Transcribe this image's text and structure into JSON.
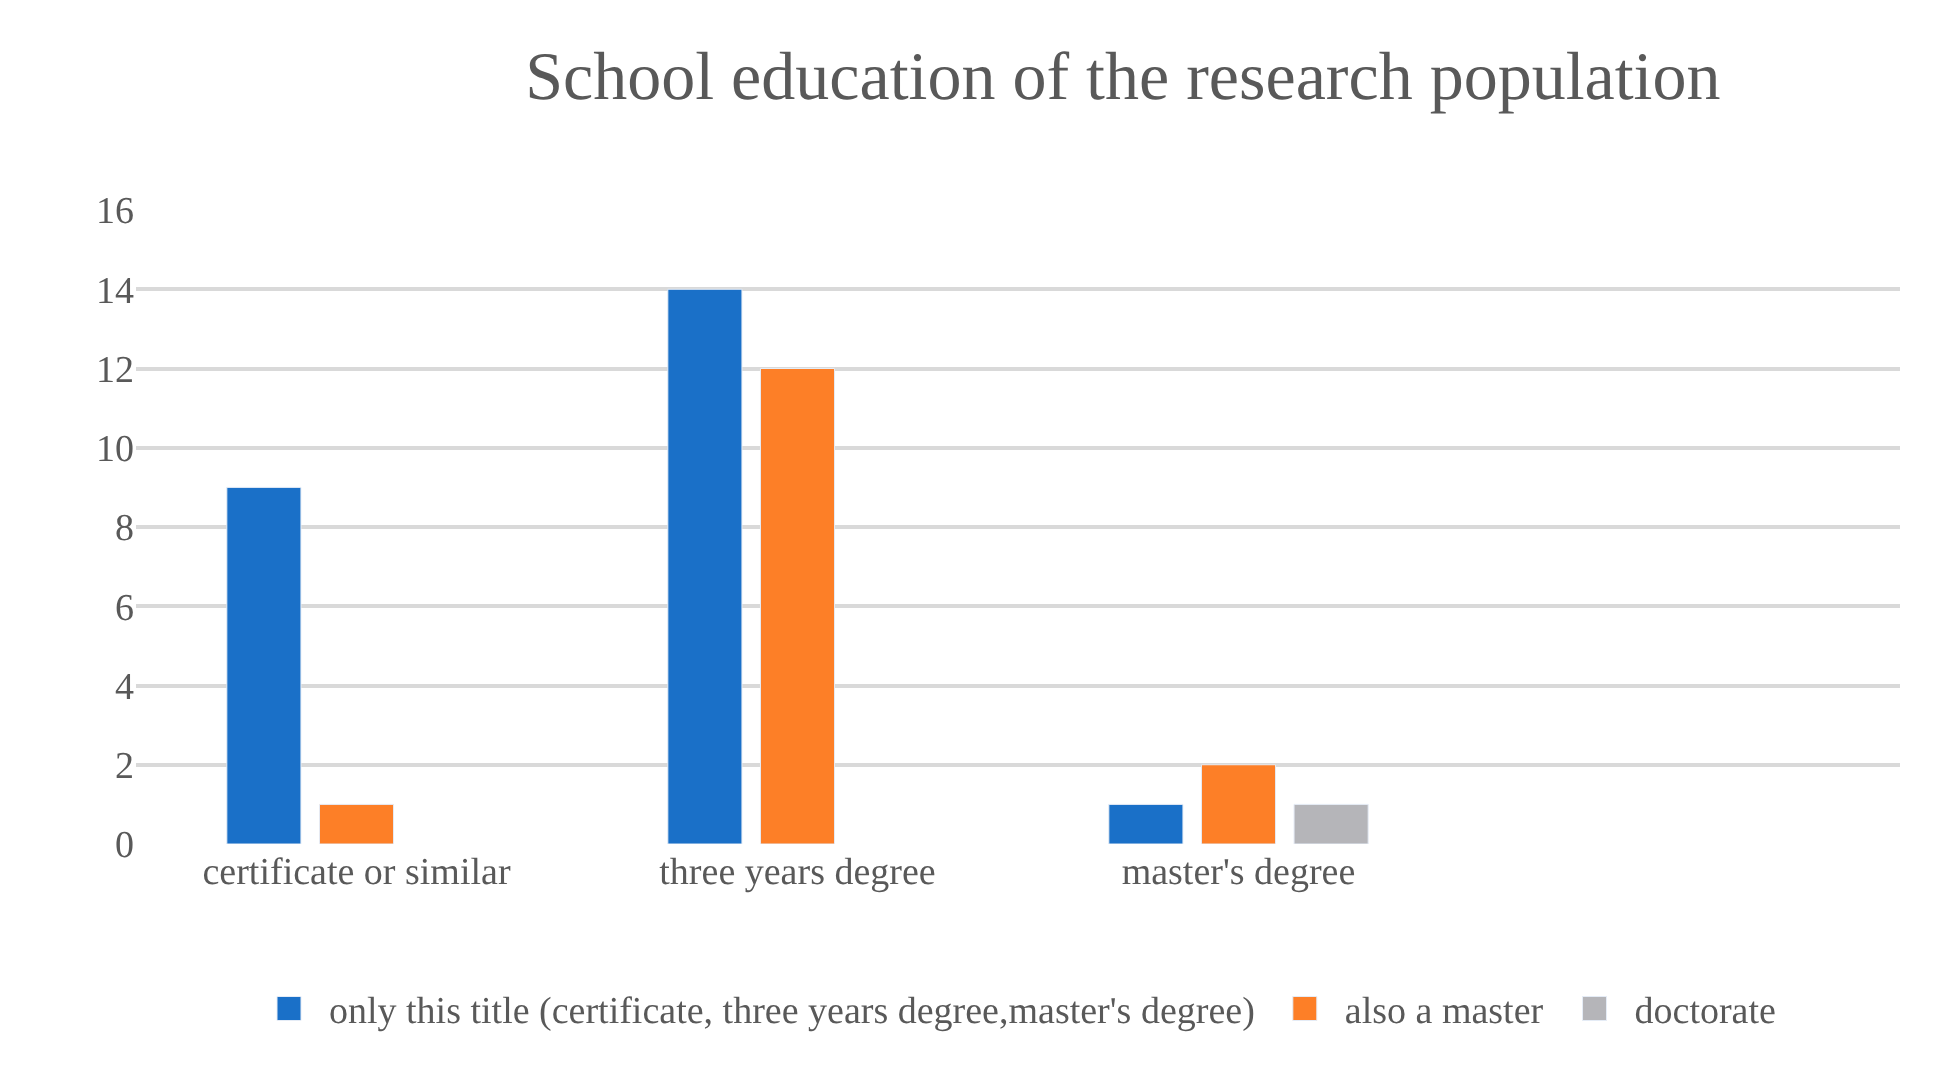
{
  "chart_data": {
    "type": "bar",
    "title": "School education of the research population",
    "categories": [
      "certificate or similar",
      "three years degree",
      "master's degree",
      null
    ],
    "series": [
      {
        "name": "only this title (certificate, three years degree,master's degree)",
        "color": "#1a70c8",
        "values": [
          9,
          14,
          1,
          null
        ]
      },
      {
        "name": "also a master",
        "color": "#fd7f27",
        "values": [
          1,
          12,
          2,
          null
        ]
      },
      {
        "name": "doctorate",
        "color": "#b5b5b9",
        "values": [
          null,
          null,
          1,
          null
        ]
      }
    ],
    "ylim": [
      0,
      16
    ],
    "yticks": [
      0,
      2,
      4,
      6,
      8,
      10,
      12,
      14,
      16
    ],
    "grid": "y",
    "legend": "bottom"
  }
}
